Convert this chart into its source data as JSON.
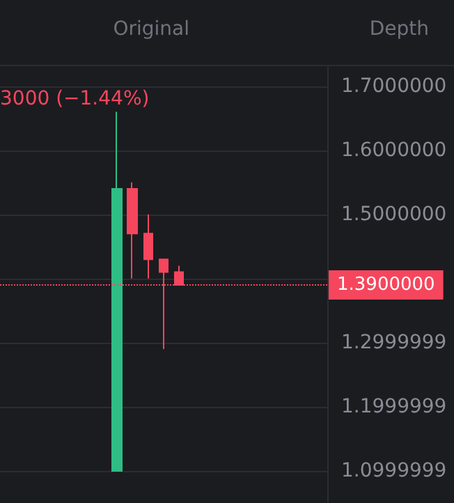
{
  "chart_data": {
    "type": "candlestick",
    "categories": [
      null,
      null,
      null,
      null,
      null,
      null,
      null,
      null,
      null,
      null,
      null,
      null,
      null,
      null,
      null,
      null,
      null,
      null,
      null,
      null,
      null
    ],
    "ohlc": [
      null,
      null,
      null,
      null,
      null,
      null,
      null,
      [
        1.1,
        1.66,
        1.1,
        1.54
      ],
      [
        1.54,
        1.55,
        1.4,
        1.47
      ],
      [
        1.47,
        1.5,
        1.4,
        1.43
      ],
      [
        1.43,
        1.43,
        1.29,
        1.41
      ],
      [
        1.41,
        1.42,
        1.39,
        1.39
      ],
      null,
      null,
      null,
      null,
      null,
      null,
      null,
      null,
      null
    ],
    "colors": [
      null,
      null,
      null,
      null,
      null,
      null,
      null,
      "#2ebd85",
      "#f6465d",
      "#f6465d",
      "#f6465d",
      "#f6465d",
      null,
      null,
      null,
      null,
      null,
      null,
      null,
      null,
      null
    ],
    "ylim": [
      1.05,
      1.73
    ],
    "yticks": [
      {
        "value": 1.0999999,
        "label": "1.0999999"
      },
      {
        "value": 1.1999999,
        "label": "1.1999999"
      },
      {
        "value": 1.2999999,
        "label": "1.2999999"
      },
      {
        "value": 1.4,
        "label": null
      },
      {
        "value": 1.5,
        "label": "1.5000000"
      },
      {
        "value": 1.6,
        "label": "1.6000000"
      },
      {
        "value": 1.7,
        "label": "1.7000000"
      }
    ],
    "grid": "y",
    "ref_lines": [
      {
        "axis": "y",
        "value": 1.39,
        "label": "1.3900000",
        "color": "#f6465d",
        "line_style": "dotted"
      }
    ],
    "annotations": [
      "3000 (−1.44%)",
      "Original",
      "Depth"
    ]
  }
}
